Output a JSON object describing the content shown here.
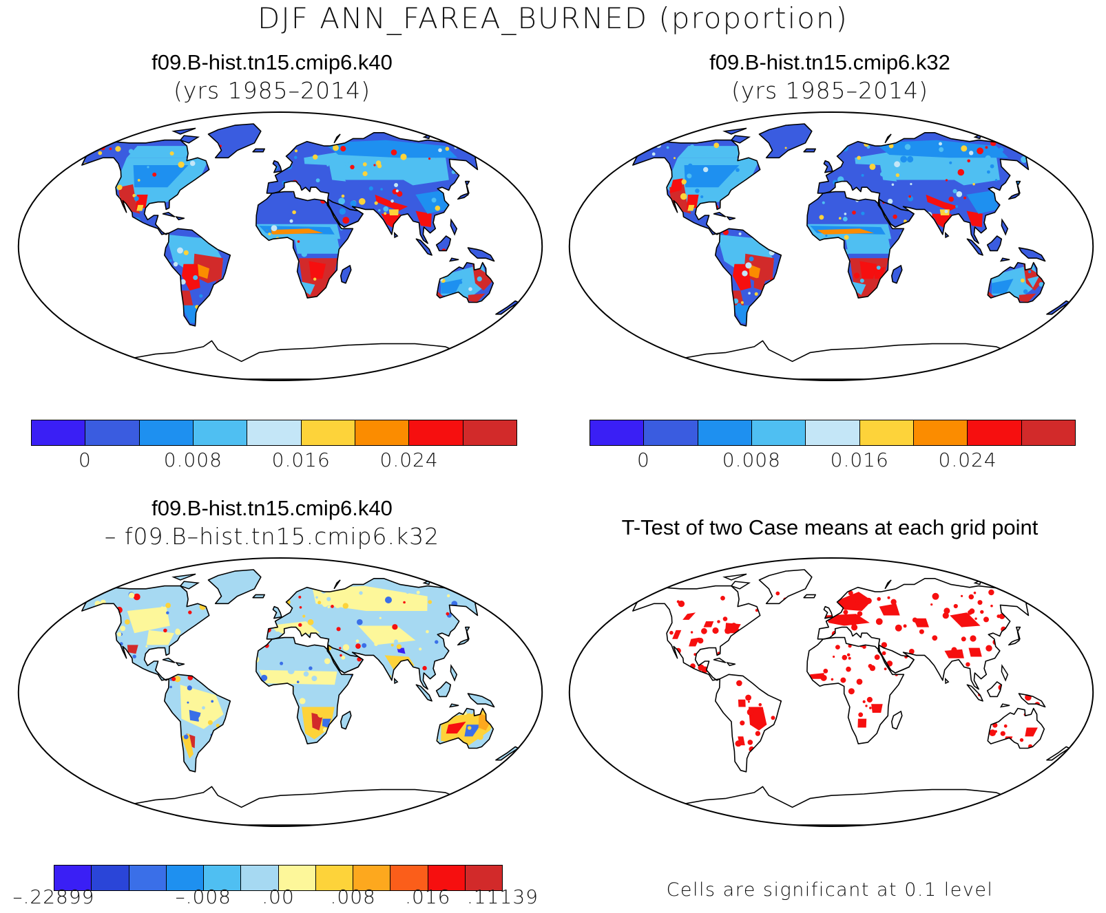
{
  "title": "DJF ANN_FAREA_BURNED (proportion)",
  "panels": [
    {
      "id": "k40",
      "title": "f09.B-hist.tn15.cmip6.k40",
      "subtitle": "(yrs 1985–2014)",
      "style": "abs"
    },
    {
      "id": "k32",
      "title": "f09.B-hist.tn15.cmip6.k32",
      "subtitle": "(yrs 1985–2014)",
      "style": "abs"
    },
    {
      "id": "diff",
      "title": "f09.B-hist.tn15.cmip6.k40",
      "subtitle": "– f09.B–hist.tn15.cmip6.k32",
      "style": "diff"
    },
    {
      "id": "ttest",
      "title": "T-Test of two Case means at each grid point",
      "subtitle": "",
      "style": "ttest"
    }
  ],
  "colorbars": {
    "abs": {
      "colors": [
        "#3a1ff5",
        "#3a5ce0",
        "#1e90f0",
        "#4fbff2",
        "#c4e6f7",
        "#fdd33a",
        "#fb8c00",
        "#f60f0f",
        "#d22a2a"
      ],
      "ticks": [
        "0",
        "0.008",
        "0.016",
        "0.024"
      ],
      "tick_edges": [
        1,
        3,
        5,
        7
      ]
    },
    "diff": {
      "colors": [
        "#3a1ff5",
        "#2a45d8",
        "#3a6fe8",
        "#1e90f0",
        "#4fbff2",
        "#a6d9f2",
        "#fdf79a",
        "#fdd33a",
        "#fda81e",
        "#fb5e1a",
        "#f60f0f",
        "#d22a2a"
      ],
      "ticks": [
        "–.22899",
        "–.008",
        ".00",
        ".008",
        ".016",
        ".11139"
      ],
      "tick_edges": [
        0,
        4,
        6,
        8,
        10,
        12
      ]
    }
  },
  "ttest_note": "Cells are significant at 0.1 level",
  "significance_color": "#f60f0f"
}
